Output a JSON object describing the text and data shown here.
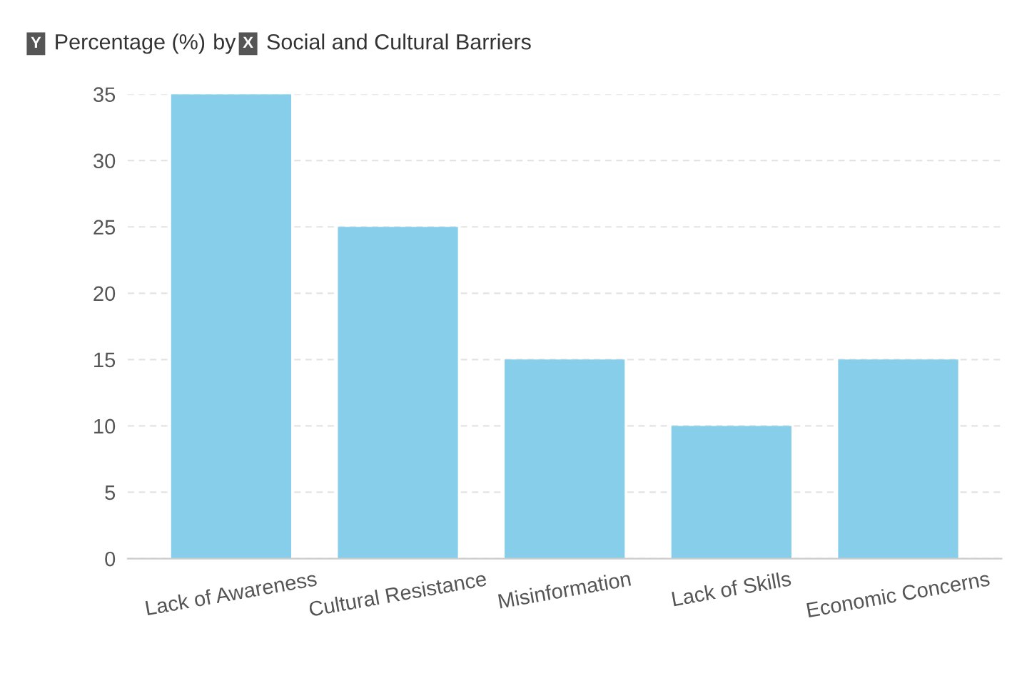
{
  "chart_data": {
    "type": "bar",
    "ylabel": "Percentage (%)",
    "xlabel": "Social and Cultural Barriers",
    "annotations": [
      "Y",
      "by",
      "X"
    ],
    "categories": [
      "Lack of Awareness",
      "Cultural Resistance",
      "Misinformation",
      "Lack of Skills",
      "Economic Concerns"
    ],
    "values": [
      35,
      25,
      15,
      10,
      15
    ],
    "color": "#87ceeb",
    "ylim": [
      0,
      35
    ],
    "yticks": [
      0,
      5,
      10,
      15,
      20,
      25,
      30,
      35
    ],
    "grid": "y"
  }
}
